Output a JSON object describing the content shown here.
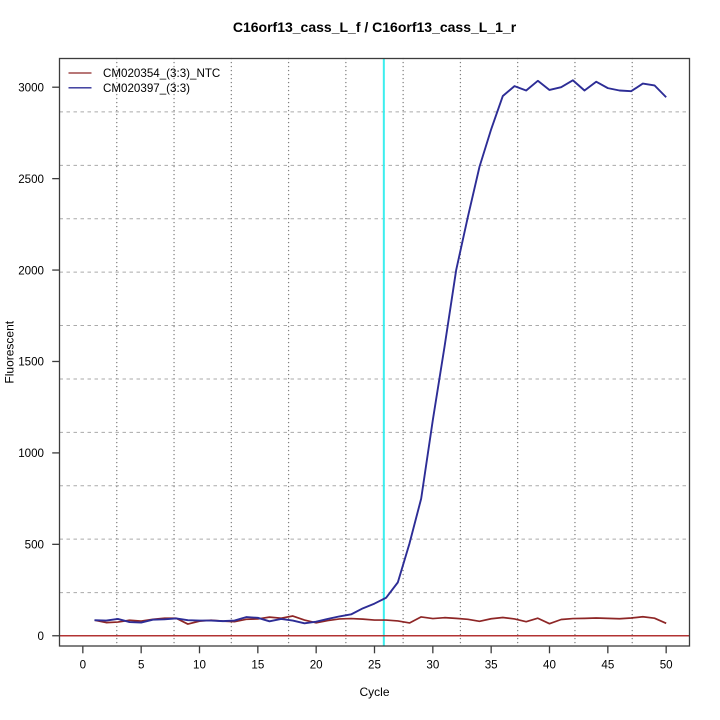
{
  "chart_data": {
    "type": "line",
    "title": "C16orf13_cass_L_f / C16orf13_cass_L_1_r",
    "xlabel": "Cycle",
    "ylabel": "Fluorescent",
    "x_ticks": [
      0,
      5,
      10,
      15,
      20,
      25,
      30,
      35,
      40,
      45,
      50
    ],
    "y_ticks": [
      0,
      500,
      1000,
      1500,
      2000,
      2500,
      3000
    ],
    "xlim": [
      -2.0,
      52.0
    ],
    "ylim": [
      -56,
      3157
    ],
    "grid": {
      "nx": 11,
      "ny": 11,
      "h_style": "dashed",
      "v_style": "dotted",
      "h_color": "#aaaaaa",
      "v_color": "#7e7e7e"
    },
    "x": [
      1,
      2,
      3,
      4,
      5,
      6,
      7,
      8,
      9,
      10,
      11,
      12,
      13,
      14,
      15,
      16,
      17,
      18,
      19,
      20,
      21,
      22,
      23,
      24,
      25,
      26,
      27,
      28,
      29,
      30,
      31,
      32,
      33,
      34,
      35,
      36,
      37,
      38,
      39,
      40,
      41,
      42,
      43,
      44,
      45,
      46,
      47,
      48,
      49,
      50
    ],
    "series": [
      {
        "name": "CM020354_(3:3)_NTC",
        "color": "#8e2626",
        "values": [
          85,
          72,
          75,
          85,
          80,
          90,
          96,
          96,
          64,
          80,
          85,
          80,
          77,
          90,
          92,
          102,
          96,
          108,
          86,
          71,
          83,
          92,
          94,
          91,
          86,
          86,
          81,
          70,
          103,
          94,
          99,
          95,
          90,
          79,
          93,
          100,
          92,
          77,
          96,
          66,
          89,
          94,
          95,
          97,
          95,
          93,
          97,
          104,
          96,
          68
        ]
      },
      {
        "name": "CM020397_(3:3)",
        "color": "#2d2d96",
        "values": [
          85,
          83,
          92,
          75,
          72,
          88,
          90,
          95,
          85,
          83,
          83,
          80,
          83,
          102,
          98,
          79,
          92,
          83,
          68,
          77,
          92,
          106,
          117,
          150,
          176,
          208,
          292,
          505,
          750,
          1180,
          1580,
          2000,
          2290,
          2565,
          2770,
          2952,
          3006,
          2982,
          3035,
          2985,
          3000,
          3038,
          2982,
          3030,
          2995,
          2982,
          2978,
          3020,
          3010,
          2945
        ]
      }
    ],
    "annotations": {
      "threshold_line": {
        "y": 0,
        "color": "#b23333"
      },
      "ct_line": {
        "x": 25.8,
        "color": "#3ceeee"
      }
    },
    "legend": {
      "position": "top-left"
    }
  }
}
